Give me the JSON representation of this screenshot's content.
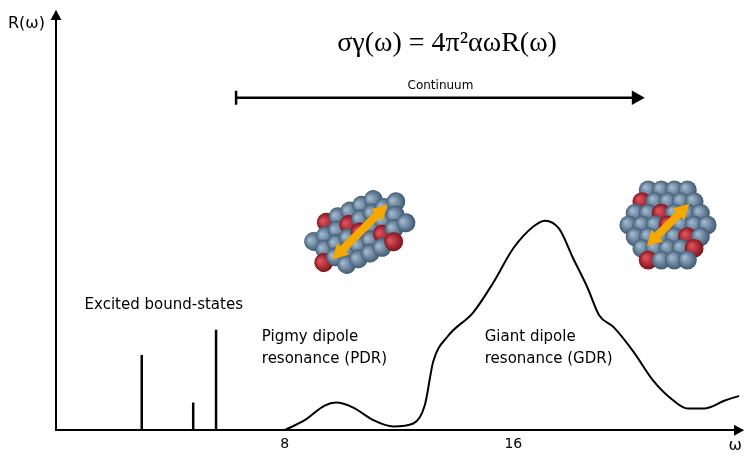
{
  "chart_data": {
    "type": "line",
    "title": "σγ(ω) = 4π²αωR(ω)",
    "x_label": "ω",
    "y_label": "R(ω)",
    "xlim": [
      0,
      24
    ],
    "xticks": [
      8,
      16
    ],
    "ylim": [
      0,
      100
    ],
    "tick_labels": "x",
    "grid": false,
    "series": [
      {
        "type": "stem",
        "color": "#000000",
        "x": [
          3.0,
          4.8,
          5.6
        ],
        "values": [
          18.0,
          6.6,
          24.0
        ]
      },
      {
        "type": "line",
        "color": "#000000",
        "x": [
          8.0,
          8.7,
          9.4,
          9.8,
          10.4,
          11.1,
          11.8,
          12.5,
          12.9,
          13.2,
          13.7,
          14.6,
          15.3,
          16.0,
          16.7,
          17.1,
          17.6,
          18.1,
          18.6,
          19.0,
          19.5,
          20.2,
          20.9,
          21.6,
          22.1,
          22.7,
          23.4,
          23.9
        ],
        "values": [
          0.0,
          2.4,
          5.9,
          6.6,
          5.4,
          2.4,
          0.9,
          1.6,
          5.9,
          16.5,
          22.4,
          28.2,
          35.3,
          43.5,
          48.7,
          50.1,
          48.2,
          41.0,
          34.0,
          27.5,
          24.7,
          18.8,
          11.8,
          7.1,
          5.2,
          5.2,
          7.1,
          8.2
        ]
      }
    ],
    "annotations": [
      {
        "text": "Excited bound-states",
        "x": 1.0,
        "y": 29
      },
      {
        "lines": [
          "Pigmy dipole",
          "resonance (PDR)"
        ],
        "x": 7.2,
        "y": 19
      },
      {
        "lines": [
          "Giant dipole",
          "resonance (GDR)"
        ],
        "x": 15.0,
        "y": 19
      }
    ],
    "span": {
      "text": "Continuum",
      "from": 6.3,
      "to": 20.6,
      "y": 79.5
    }
  }
}
